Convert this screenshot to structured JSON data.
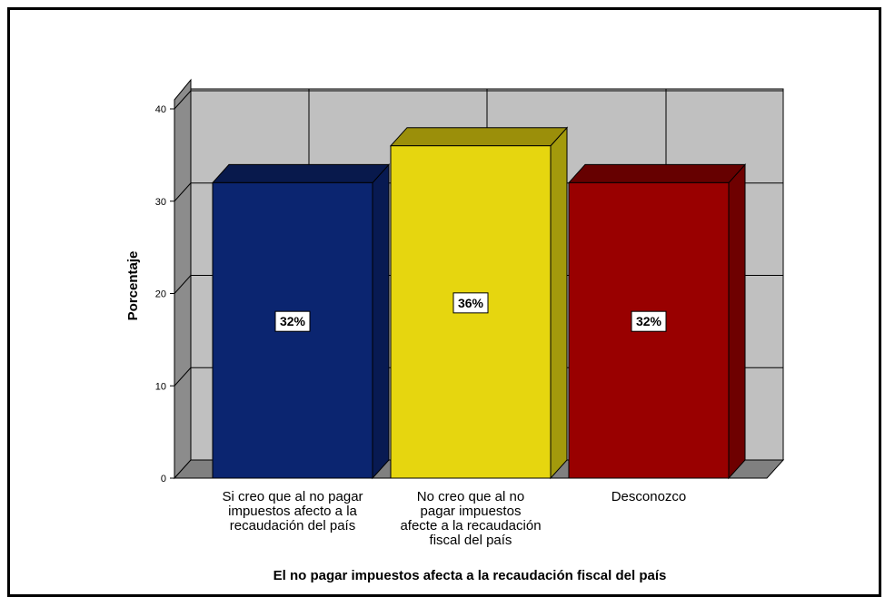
{
  "chart_data": {
    "type": "bar",
    "xlabel": "El no pagar impuestos afecta a la recaudación fiscal del país",
    "ylabel": "Porcentaje",
    "ylim": [
      0,
      40
    ],
    "yticks": [
      0,
      10,
      20,
      30,
      40
    ],
    "grid": true,
    "categories": [
      [
        "Si creo que al no pagar",
        "impuestos afecto a la",
        "recaudación del país"
      ],
      [
        "No creo que al no",
        "pagar impuestos",
        "afecte a la recaudación",
        "fiscal del país"
      ],
      [
        "Desconozco"
      ]
    ],
    "values": [
      32,
      36,
      32
    ],
    "data_labels": [
      "32%",
      "36%",
      "32%"
    ],
    "colors": {
      "front": [
        "#0b2570",
        "#e6d60f",
        "#990000"
      ],
      "top": [
        "#08194c",
        "#9b8f0a",
        "#660000"
      ],
      "side": [
        "#081a52",
        "#a39a0c",
        "#6e0000"
      ],
      "wall": "#c0c0c0",
      "wall_side": "#8c8c8c",
      "floor": "#808080"
    }
  }
}
